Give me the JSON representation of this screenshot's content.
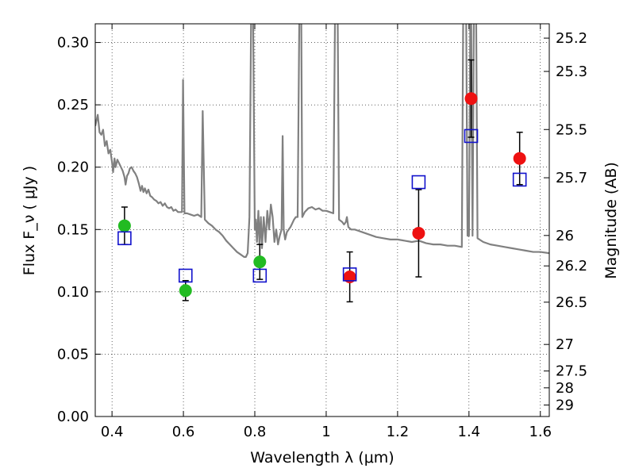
{
  "chart_data": {
    "type": "scatter",
    "xlabel": "Wavelength  λ (μm)",
    "ylabel": "Flux  F_ν  ( μJy )",
    "ylabel_right": "Magnitude (AB)",
    "xlim": [
      0.353,
      1.625
    ],
    "ylim": [
      0.0,
      0.315
    ],
    "grid": true,
    "x_ticks": [
      {
        "value": 0.4,
        "label": "0.4"
      },
      {
        "value": 0.6,
        "label": "0.6"
      },
      {
        "value": 0.8,
        "label": "0.8"
      },
      {
        "value": 1.0,
        "label": "1"
      },
      {
        "value": 1.2,
        "label": "1.2"
      },
      {
        "value": 1.4,
        "label": "1.4"
      },
      {
        "value": 1.6,
        "label": "1.6"
      }
    ],
    "y_ticks": [
      {
        "value": 0.0,
        "label": "0.00"
      },
      {
        "value": 0.05,
        "label": "0.05"
      },
      {
        "value": 0.1,
        "label": "0.10"
      },
      {
        "value": 0.15,
        "label": "0.15"
      },
      {
        "value": 0.2,
        "label": "0.20"
      },
      {
        "value": 0.25,
        "label": "0.25"
      },
      {
        "value": 0.3,
        "label": "0.30"
      }
    ],
    "right_ticks": [
      {
        "label": "25.2",
        "flux": 0.3035
      },
      {
        "label": "25.3",
        "flux": 0.2768
      },
      {
        "label": "25.5",
        "flux": 0.2302
      },
      {
        "label": "25.7",
        "flux": 0.1915
      },
      {
        "label": "26",
        "flux": 0.1452
      },
      {
        "label": "26.2",
        "flux": 0.1208
      },
      {
        "label": "26.5",
        "flux": 0.0917
      },
      {
        "label": "27",
        "flux": 0.0578
      },
      {
        "label": "27.5",
        "flux": 0.0365
      },
      {
        "label": "28",
        "flux": 0.023
      },
      {
        "label": "29",
        "flux": 0.0092
      }
    ],
    "model_spectrum": {
      "color": "#808080",
      "points": [
        [
          0.353,
          0.233
        ],
        [
          0.36,
          0.242
        ],
        [
          0.365,
          0.228
        ],
        [
          0.37,
          0.226
        ],
        [
          0.375,
          0.23
        ],
        [
          0.38,
          0.217
        ],
        [
          0.385,
          0.221
        ],
        [
          0.39,
          0.211
        ],
        [
          0.395,
          0.214
        ],
        [
          0.4,
          0.204
        ],
        [
          0.403,
          0.196
        ],
        [
          0.407,
          0.207
        ],
        [
          0.41,
          0.2
        ],
        [
          0.415,
          0.206
        ],
        [
          0.42,
          0.203
        ],
        [
          0.425,
          0.2
        ],
        [
          0.43,
          0.197
        ],
        [
          0.435,
          0.192
        ],
        [
          0.438,
          0.186
        ],
        [
          0.442,
          0.193
        ],
        [
          0.446,
          0.195
        ],
        [
          0.45,
          0.199
        ],
        [
          0.455,
          0.2
        ],
        [
          0.46,
          0.197
        ],
        [
          0.465,
          0.195
        ],
        [
          0.47,
          0.192
        ],
        [
          0.475,
          0.187
        ],
        [
          0.48,
          0.181
        ],
        [
          0.484,
          0.185
        ],
        [
          0.488,
          0.18
        ],
        [
          0.492,
          0.183
        ],
        [
          0.497,
          0.179
        ],
        [
          0.502,
          0.182
        ],
        [
          0.507,
          0.177
        ],
        [
          0.512,
          0.176
        ],
        [
          0.518,
          0.174
        ],
        [
          0.524,
          0.173
        ],
        [
          0.53,
          0.171
        ],
        [
          0.536,
          0.172
        ],
        [
          0.542,
          0.169
        ],
        [
          0.548,
          0.171
        ],
        [
          0.554,
          0.168
        ],
        [
          0.56,
          0.167
        ],
        [
          0.566,
          0.168
        ],
        [
          0.572,
          0.165
        ],
        [
          0.578,
          0.166
        ],
        [
          0.585,
          0.164
        ],
        [
          0.592,
          0.164
        ],
        [
          0.596,
          0.164
        ],
        [
          0.599,
          0.27
        ],
        [
          0.603,
          0.163
        ],
        [
          0.61,
          0.163
        ],
        [
          0.62,
          0.162
        ],
        [
          0.63,
          0.161
        ],
        [
          0.64,
          0.162
        ],
        [
          0.65,
          0.16
        ],
        [
          0.654,
          0.245
        ],
        [
          0.66,
          0.158
        ],
        [
          0.67,
          0.155
        ],
        [
          0.68,
          0.153
        ],
        [
          0.69,
          0.15
        ],
        [
          0.7,
          0.148
        ],
        [
          0.71,
          0.145
        ],
        [
          0.72,
          0.141
        ],
        [
          0.73,
          0.138
        ],
        [
          0.74,
          0.135
        ],
        [
          0.75,
          0.132
        ],
        [
          0.76,
          0.13
        ],
        [
          0.77,
          0.128
        ],
        [
          0.775,
          0.128
        ],
        [
          0.78,
          0.131
        ],
        [
          0.785,
          0.16
        ],
        [
          0.79,
          0.33
        ],
        [
          0.795,
          0.33
        ],
        [
          0.8,
          0.15
        ],
        [
          0.803,
          0.158
        ],
        [
          0.806,
          0.14
        ],
        [
          0.81,
          0.165
        ],
        [
          0.813,
          0.138
        ],
        [
          0.817,
          0.16
        ],
        [
          0.82,
          0.135
        ],
        [
          0.825,
          0.16
        ],
        [
          0.83,
          0.14
        ],
        [
          0.835,
          0.165
        ],
        [
          0.84,
          0.15
        ],
        [
          0.845,
          0.17
        ],
        [
          0.85,
          0.16
        ],
        [
          0.855,
          0.14
        ],
        [
          0.86,
          0.15
        ],
        [
          0.865,
          0.138
        ],
        [
          0.87,
          0.145
        ],
        [
          0.875,
          0.15
        ],
        [
          0.878,
          0.225
        ],
        [
          0.881,
          0.15
        ],
        [
          0.885,
          0.142
        ],
        [
          0.89,
          0.148
        ],
        [
          0.895,
          0.15
        ],
        [
          0.9,
          0.152
        ],
        [
          0.905,
          0.155
        ],
        [
          0.91,
          0.158
        ],
        [
          0.915,
          0.16
        ],
        [
          0.92,
          0.16
        ],
        [
          0.925,
          0.33
        ],
        [
          0.93,
          0.33
        ],
        [
          0.933,
          0.16
        ],
        [
          0.94,
          0.164
        ],
        [
          0.95,
          0.167
        ],
        [
          0.96,
          0.168
        ],
        [
          0.97,
          0.166
        ],
        [
          0.98,
          0.167
        ],
        [
          0.99,
          0.165
        ],
        [
          1.0,
          0.165
        ],
        [
          1.01,
          0.164
        ],
        [
          1.02,
          0.163
        ],
        [
          1.025,
          0.33
        ],
        [
          1.032,
          0.33
        ],
        [
          1.036,
          0.158
        ],
        [
          1.045,
          0.156
        ],
        [
          1.05,
          0.154
        ],
        [
          1.055,
          0.156
        ],
        [
          1.058,
          0.16
        ],
        [
          1.062,
          0.152
        ],
        [
          1.07,
          0.15
        ],
        [
          1.08,
          0.15
        ],
        [
          1.09,
          0.149
        ],
        [
          1.1,
          0.148
        ],
        [
          1.12,
          0.146
        ],
        [
          1.14,
          0.144
        ],
        [
          1.16,
          0.143
        ],
        [
          1.18,
          0.142
        ],
        [
          1.2,
          0.142
        ],
        [
          1.22,
          0.141
        ],
        [
          1.24,
          0.14
        ],
        [
          1.26,
          0.141
        ],
        [
          1.28,
          0.139
        ],
        [
          1.3,
          0.138
        ],
        [
          1.32,
          0.138
        ],
        [
          1.34,
          0.137
        ],
        [
          1.36,
          0.137
        ],
        [
          1.38,
          0.136
        ],
        [
          1.384,
          0.33
        ],
        [
          1.392,
          0.33
        ],
        [
          1.396,
          0.145
        ],
        [
          1.4,
          0.145
        ],
        [
          1.404,
          0.33
        ],
        [
          1.406,
          0.33
        ],
        [
          1.41,
          0.145
        ],
        [
          1.414,
          0.33
        ],
        [
          1.42,
          0.33
        ],
        [
          1.424,
          0.143
        ],
        [
          1.44,
          0.14
        ],
        [
          1.46,
          0.138
        ],
        [
          1.48,
          0.137
        ],
        [
          1.5,
          0.136
        ],
        [
          1.52,
          0.135
        ],
        [
          1.54,
          0.134
        ],
        [
          1.56,
          0.133
        ],
        [
          1.58,
          0.132
        ],
        [
          1.6,
          0.132
        ],
        [
          1.625,
          0.131
        ]
      ]
    },
    "series": [
      {
        "marker": "circle",
        "color": "#22bb22",
        "points": [
          {
            "x": 0.435,
            "y": 0.153,
            "err_lo": 0.015,
            "err_hi": 0.015
          },
          {
            "x": 0.606,
            "y": 0.101,
            "err_lo": 0.008,
            "err_hi": 0.008
          },
          {
            "x": 0.814,
            "y": 0.124,
            "err_lo": 0.014,
            "err_hi": 0.014
          }
        ]
      },
      {
        "marker": "circle",
        "color": "#ee1111",
        "points": [
          {
            "x": 1.066,
            "y": 0.112,
            "err_lo": 0.02,
            "err_hi": 0.02
          },
          {
            "x": 1.259,
            "y": 0.147,
            "err_lo": 0.035,
            "err_hi": 0.035
          },
          {
            "x": 1.406,
            "y": 0.255,
            "err_lo": 0.031,
            "err_hi": 0.031
          },
          {
            "x": 1.542,
            "y": 0.207,
            "err_lo": 0.021,
            "err_hi": 0.021
          }
        ]
      },
      {
        "marker": "open-square",
        "color": "#1111cc",
        "points": [
          {
            "x": 0.435,
            "y": 0.143
          },
          {
            "x": 0.606,
            "y": 0.113
          },
          {
            "x": 0.814,
            "y": 0.113
          },
          {
            "x": 1.066,
            "y": 0.114
          },
          {
            "x": 1.259,
            "y": 0.188
          },
          {
            "x": 1.406,
            "y": 0.225
          },
          {
            "x": 1.542,
            "y": 0.19
          }
        ]
      }
    ]
  }
}
